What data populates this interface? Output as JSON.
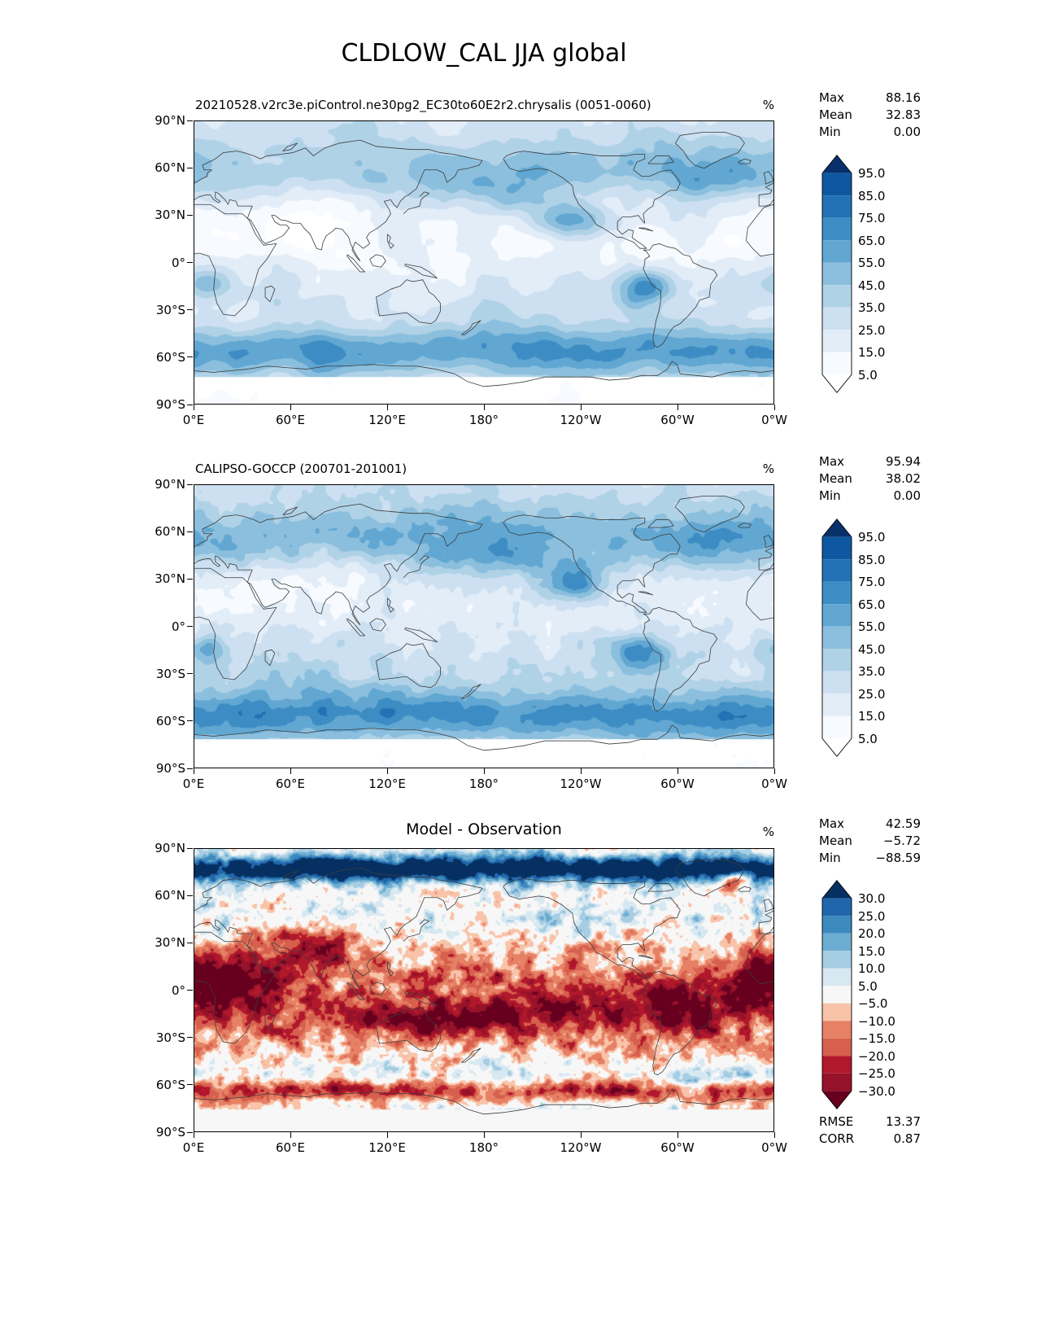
{
  "title": "CLDLOW_CAL JJA global",
  "axes": {
    "y_ticks": [
      "90°N",
      "60°N",
      "30°N",
      "0°",
      "30°S",
      "60°S",
      "90°S"
    ],
    "x_ticks": [
      "0°E",
      "60°E",
      "120°E",
      "180°",
      "120°W",
      "60°W",
      "0°W"
    ]
  },
  "panels": [
    {
      "subtitle": "20210528.v2rc3e.piControl.ne30pg2_EC30to60E2r2.chrysalis (0051-0060)",
      "units": "%",
      "stats": [
        {
          "label": "Max",
          "value": "88.16"
        },
        {
          "label": "Mean",
          "value": "32.83"
        },
        {
          "label": "Min",
          "value": "0.00"
        }
      ],
      "colorbar": {
        "labels": [
          "95.0",
          "85.0",
          "75.0",
          "65.0",
          "55.0",
          "45.0",
          "35.0",
          "25.0",
          "15.0",
          "5.0"
        ],
        "colors": [
          "#ffffff",
          "#f7fbff",
          "#e2edf8",
          "#cde0f1",
          "#b0d2e7",
          "#8bbfdd",
          "#61a7d2",
          "#3d8dc4",
          "#2272b5",
          "#0e58a2",
          "#08306b"
        ]
      }
    },
    {
      "subtitle": "CALIPSO-GOCCP (200701-201001)",
      "units": "%",
      "stats": [
        {
          "label": "Max",
          "value": "95.94"
        },
        {
          "label": "Mean",
          "value": "38.02"
        },
        {
          "label": "Min",
          "value": "0.00"
        }
      ],
      "colorbar": {
        "labels": [
          "95.0",
          "85.0",
          "75.0",
          "65.0",
          "55.0",
          "45.0",
          "35.0",
          "25.0",
          "15.0",
          "5.0"
        ],
        "colors": [
          "#ffffff",
          "#f7fbff",
          "#e2edf8",
          "#cde0f1",
          "#b0d2e7",
          "#8bbfdd",
          "#61a7d2",
          "#3d8dc4",
          "#2272b5",
          "#0e58a2",
          "#08306b"
        ]
      }
    },
    {
      "subtitle": "Model - Observation",
      "units": "%",
      "stats": [
        {
          "label": "Max",
          "value": "42.59"
        },
        {
          "label": "Mean",
          "value": "−5.72"
        },
        {
          "label": "Min",
          "value": "−88.59"
        }
      ],
      "metrics": [
        {
          "label": "RMSE",
          "value": "13.37"
        },
        {
          "label": "CORR",
          "value": "0.87"
        }
      ],
      "colorbar": {
        "labels": [
          "30.0",
          "25.0",
          "20.0",
          "15.0",
          "10.0",
          "5.0",
          "−5.0",
          "−10.0",
          "−15.0",
          "−20.0",
          "−25.0",
          "−30.0"
        ],
        "colors": [
          "#67001f",
          "#96122a",
          "#b2182b",
          "#d6604d",
          "#e68165",
          "#f9c3a9",
          "#f7f7f7",
          "#d7e8f1",
          "#a5cde3",
          "#6dadd1",
          "#3c8abe",
          "#2166ac",
          "#053061"
        ]
      }
    }
  ],
  "chart_data": [
    {
      "type": "heatmap",
      "title": "20210528.v2rc3e.piControl.ne30pg2_EC30to60E2r2.chrysalis (0051-0060)",
      "variable": "CLDLOW_CAL",
      "season": "JJA",
      "region": "global",
      "units": "%",
      "projection": "lon-lat, 0°E to 0°W (centered on 180°)",
      "x_ticks": [
        "0°E",
        "60°E",
        "120°E",
        "180°",
        "120°W",
        "60°W",
        "0°W"
      ],
      "y_ticks": [
        "90°N",
        "60°N",
        "30°N",
        "0°",
        "30°S",
        "60°S",
        "90°S"
      ],
      "levels": [
        5,
        15,
        25,
        35,
        45,
        55,
        65,
        75,
        85,
        95
      ],
      "colormap": "Blues, extend both",
      "legend_position": "right",
      "stats": {
        "max": 88.16,
        "mean": 32.83,
        "min": 0.0
      }
    },
    {
      "type": "heatmap",
      "title": "CALIPSO-GOCCP (200701-201001)",
      "variable": "CLDLOW_CAL",
      "season": "JJA",
      "region": "global",
      "units": "%",
      "projection": "lon-lat, 0°E to 0°W (centered on 180°)",
      "x_ticks": [
        "0°E",
        "60°E",
        "120°E",
        "180°",
        "120°W",
        "60°W",
        "0°W"
      ],
      "y_ticks": [
        "90°N",
        "60°N",
        "30°N",
        "0°",
        "30°S",
        "60°S",
        "90°S"
      ],
      "levels": [
        5,
        15,
        25,
        35,
        45,
        55,
        65,
        75,
        85,
        95
      ],
      "colormap": "Blues, extend both",
      "legend_position": "right",
      "stats": {
        "max": 95.94,
        "mean": 38.02,
        "min": 0.0
      }
    },
    {
      "type": "heatmap",
      "title": "Model - Observation",
      "variable": "CLDLOW_CAL difference",
      "season": "JJA",
      "region": "global",
      "units": "%",
      "projection": "lon-lat, 0°E to 0°W (centered on 180°)",
      "x_ticks": [
        "0°E",
        "60°E",
        "120°E",
        "180°",
        "120°W",
        "60°W",
        "0°W"
      ],
      "y_ticks": [
        "90°N",
        "60°N",
        "30°N",
        "0°",
        "30°S",
        "60°S",
        "90°S"
      ],
      "levels": [
        -30,
        -25,
        -20,
        -15,
        -10,
        -5,
        5,
        10,
        15,
        20,
        25,
        30
      ],
      "colormap": "RdBu reversed (red negative, blue positive), extend both",
      "legend_position": "right",
      "stats": {
        "max": 42.59,
        "mean": -5.72,
        "min": -88.59
      },
      "rmse": 13.37,
      "corr": 0.87
    }
  ]
}
